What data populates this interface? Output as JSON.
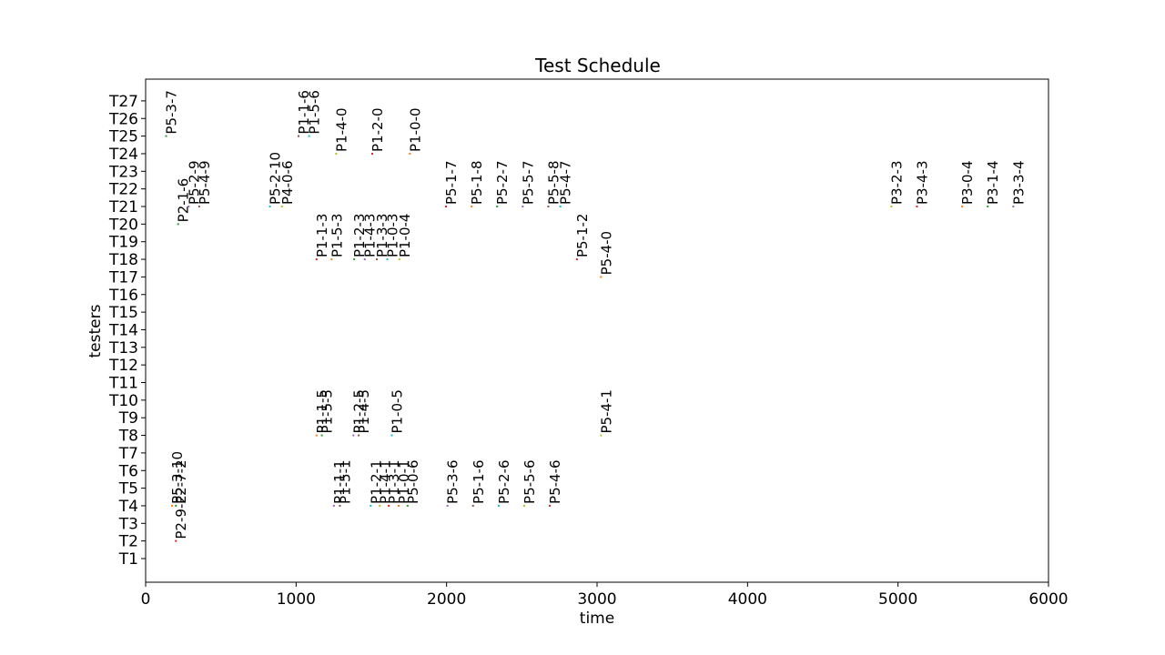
{
  "chart_data": {
    "type": "gantt",
    "title": "Test Schedule",
    "xlabel": "time",
    "ylabel": "testers",
    "xlim": [
      0,
      6000
    ],
    "xticks": [
      0,
      1000,
      2000,
      3000,
      4000,
      5000,
      6000
    ],
    "xtick_labels": [
      "0",
      "1000",
      "2000",
      "3000",
      "4000",
      "5000",
      "6000"
    ],
    "testers": [
      "T1",
      "T2",
      "T3",
      "T4",
      "T5",
      "T6",
      "T7",
      "T8",
      "T9",
      "T10",
      "T11",
      "T12",
      "T13",
      "T14",
      "T15",
      "T16",
      "T17",
      "T18",
      "T19",
      "T20",
      "T21",
      "T22",
      "T23",
      "T24",
      "T25",
      "T26",
      "T27"
    ],
    "grid": false,
    "legend": "none",
    "tasks": [
      {
        "label": "P2-9-2",
        "tester": "T2",
        "start": 195
      },
      {
        "label": "P5-3-10",
        "tester": "T4",
        "start": 170
      },
      {
        "label": "P2-7-2",
        "tester": "T4",
        "start": 195
      },
      {
        "label": "P1-1-1",
        "tester": "T4",
        "start": 1245
      },
      {
        "label": "P1-5-1",
        "tester": "T4",
        "start": 1285
      },
      {
        "label": "P1-2-1",
        "tester": "T4",
        "start": 1490
      },
      {
        "label": "P1-4-1",
        "tester": "T4",
        "start": 1550
      },
      {
        "label": "P1-3-1",
        "tester": "T4",
        "start": 1610
      },
      {
        "label": "P1-0-1",
        "tester": "T4",
        "start": 1675
      },
      {
        "label": "P5-0-6",
        "tester": "T4",
        "start": 1735
      },
      {
        "label": "P5-3-6",
        "tester": "T4",
        "start": 2000
      },
      {
        "label": "P5-1-6",
        "tester": "T4",
        "start": 2170
      },
      {
        "label": "P5-2-6",
        "tester": "T4",
        "start": 2340
      },
      {
        "label": "P5-5-6",
        "tester": "T4",
        "start": 2510
      },
      {
        "label": "P5-4-6",
        "tester": "T4",
        "start": 2680
      },
      {
        "label": "P1-1-5",
        "tester": "T8",
        "start": 1130
      },
      {
        "label": "P1-5-5",
        "tester": "T8",
        "start": 1165
      },
      {
        "label": "P1-2-5",
        "tester": "T8",
        "start": 1375
      },
      {
        "label": "P1-4-5",
        "tester": "T8",
        "start": 1410
      },
      {
        "label": "P1-0-5",
        "tester": "T8",
        "start": 1630
      },
      {
        "label": "P5-4-1",
        "tester": "T8",
        "start": 3020
      },
      {
        "label": "P1-1-3",
        "tester": "T18",
        "start": 1130
      },
      {
        "label": "P1-5-3",
        "tester": "T18",
        "start": 1230
      },
      {
        "label": "P1-2-3",
        "tester": "T18",
        "start": 1380
      },
      {
        "label": "P1-4-3",
        "tester": "T18",
        "start": 1450
      },
      {
        "label": "P1-3-3",
        "tester": "T18",
        "start": 1530
      },
      {
        "label": "P1-0-3",
        "tester": "T18",
        "start": 1600
      },
      {
        "label": "P1-0-4",
        "tester": "T18",
        "start": 1680
      },
      {
        "label": "P5-1-2",
        "tester": "T18",
        "start": 2860
      },
      {
        "label": "P5-4-0",
        "tester": "T17",
        "start": 3020
      },
      {
        "label": "P2-1-6",
        "tester": "T20",
        "start": 210
      },
      {
        "label": "P5-2-9",
        "tester": "T21",
        "start": 280
      },
      {
        "label": "P5-4-9",
        "tester": "T21",
        "start": 350
      },
      {
        "label": "P5-2-10",
        "tester": "T21",
        "start": 820
      },
      {
        "label": "P4-0-6",
        "tester": "T21",
        "start": 900
      },
      {
        "label": "P5-1-7",
        "tester": "T21",
        "start": 1990
      },
      {
        "label": "P5-1-8",
        "tester": "T21",
        "start": 2160
      },
      {
        "label": "P5-2-7",
        "tester": "T21",
        "start": 2330
      },
      {
        "label": "P5-5-7",
        "tester": "T21",
        "start": 2500
      },
      {
        "label": "P5-5-8",
        "tester": "T21",
        "start": 2670
      },
      {
        "label": "P5-4-7",
        "tester": "T21",
        "start": 2750
      },
      {
        "label": "P3-2-3",
        "tester": "T21",
        "start": 4950
      },
      {
        "label": "P3-4-3",
        "tester": "T21",
        "start": 5120
      },
      {
        "label": "P3-0-4",
        "tester": "T21",
        "start": 5420
      },
      {
        "label": "P3-1-4",
        "tester": "T21",
        "start": 5590
      },
      {
        "label": "P3-3-4",
        "tester": "T21",
        "start": 5760
      },
      {
        "label": "P1-1-6",
        "tester": "T25",
        "start": 1010
      },
      {
        "label": "P1-5-6",
        "tester": "T25",
        "start": 1080
      },
      {
        "label": "P1-4-0",
        "tester": "T24",
        "start": 1260
      },
      {
        "label": "P1-2-0",
        "tester": "T24",
        "start": 1500
      },
      {
        "label": "P1-0-0",
        "tester": "T24",
        "start": 1750
      },
      {
        "label": "P5-3-7",
        "tester": "T25",
        "start": 130
      }
    ]
  }
}
